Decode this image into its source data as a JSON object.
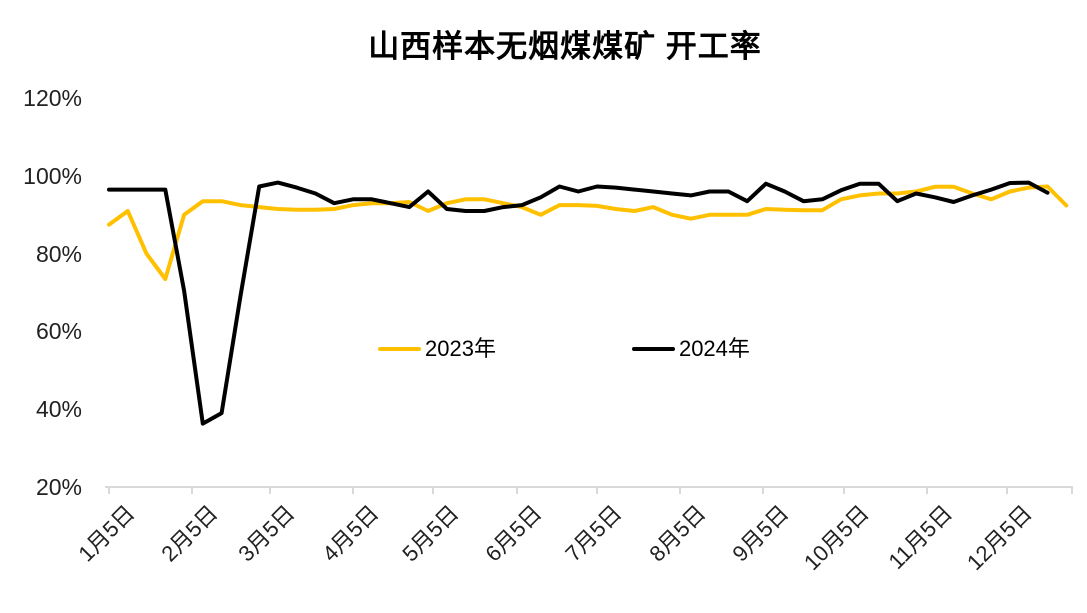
{
  "chart_data": {
    "type": "line",
    "title": "山西样本无烟煤煤矿 开工率",
    "grid": false,
    "legend_position": "center-middle",
    "background": "#FFFFFF",
    "axis_color": "#D9D9D9",
    "tick_text_color": "#222222",
    "y_axis": {
      "unit": "%",
      "min": 20,
      "max": 120,
      "tick_step": 20,
      "tick_labels": [
        "20%",
        "40%",
        "60%",
        "80%",
        "100%",
        "120%"
      ]
    },
    "x_axis": {
      "sampling": "weekly",
      "tick_labels": [
        "1月5日",
        "2月5日",
        "3月5日",
        "4月5日",
        "5月5日",
        "6月5日",
        "7月5日",
        "8月5日",
        "9月5日",
        "10月5日",
        "11月5日",
        "12月5日"
      ]
    },
    "series": [
      {
        "name": "2023年",
        "color": "#FFC000",
        "values": [
          87.5,
          91,
          80,
          73.5,
          90,
          93.5,
          93.5,
          92.5,
          92,
          91.5,
          91.3,
          91.3,
          91.5,
          92.5,
          93,
          93,
          93.3,
          91,
          93,
          94,
          94,
          93,
          92,
          90,
          92.5,
          92.5,
          92.3,
          91.5,
          91,
          92,
          90,
          89,
          90,
          90,
          90,
          91.5,
          91.3,
          91.2,
          91.2,
          94,
          95,
          95.5,
          95.5,
          96,
          97.2,
          97.2,
          95.5,
          94,
          96,
          97,
          97.3,
          92.4
        ]
      },
      {
        "name": "2024年",
        "color": "#000000",
        "values": [
          96.5,
          96.5,
          96.5,
          96.5,
          70.5,
          36.3,
          39,
          69,
          97.3,
          98.3,
          97,
          95.5,
          93,
          94,
          94,
          93,
          92,
          96,
          91.5,
          91,
          91,
          92,
          92.5,
          94.5,
          97.3,
          96,
          97.3,
          97,
          96.5,
          96,
          95.5,
          95,
          96,
          96,
          93.5,
          98,
          96,
          93.5,
          94,
          96.3,
          98,
          98,
          93.5,
          95.5,
          94.5,
          93.3,
          95,
          96.5,
          98.2,
          98.3,
          95.7
        ]
      }
    ]
  }
}
